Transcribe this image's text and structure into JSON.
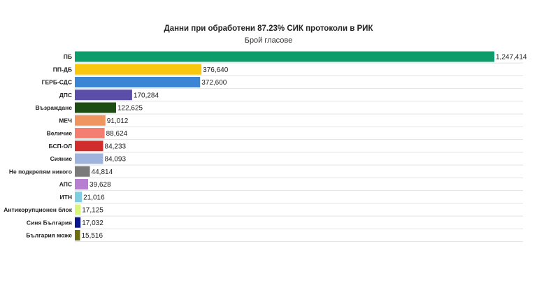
{
  "chart_data": {
    "type": "bar",
    "orientation": "horizontal",
    "title": "Данни при обработени 87.23% СИК протоколи в РИК",
    "subtitle": "Брой гласове",
    "categories": [
      "ПБ",
      "ПП-ДБ",
      "ГЕРБ-СДС",
      "ДПС",
      "Възраждане",
      "МЕЧ",
      "Величие",
      "БСП-ОЛ",
      "Сияние",
      "Не подкрепям никого",
      "АПС",
      "ИТН",
      "Антикорупционен блок",
      "Синя България",
      "България може"
    ],
    "values": [
      1247414,
      376640,
      372600,
      170284,
      122625,
      91012,
      88624,
      84233,
      84093,
      44814,
      39628,
      21016,
      17125,
      17032,
      15516
    ],
    "value_labels": [
      "1,247,414",
      "376,640",
      "372,600",
      "170,284",
      "122,625",
      "91,012",
      "88,624",
      "84,233",
      "84,093",
      "44,814",
      "39,628",
      "21,016",
      "17,125",
      "17,032",
      "15,516"
    ],
    "colors": [
      "#0f9c6b",
      "#f9c80e",
      "#3a86d4",
      "#5b4ea8",
      "#1d4d12",
      "#ef9560",
      "#f47f70",
      "#d22d2d",
      "#9fb4dd",
      "#7a7a7a",
      "#b77fd1",
      "#7fcde0",
      "#d8f57c",
      "#0a168d",
      "#6c6d0c"
    ],
    "xlim": [
      0,
      1247414
    ],
    "grid": true
  }
}
